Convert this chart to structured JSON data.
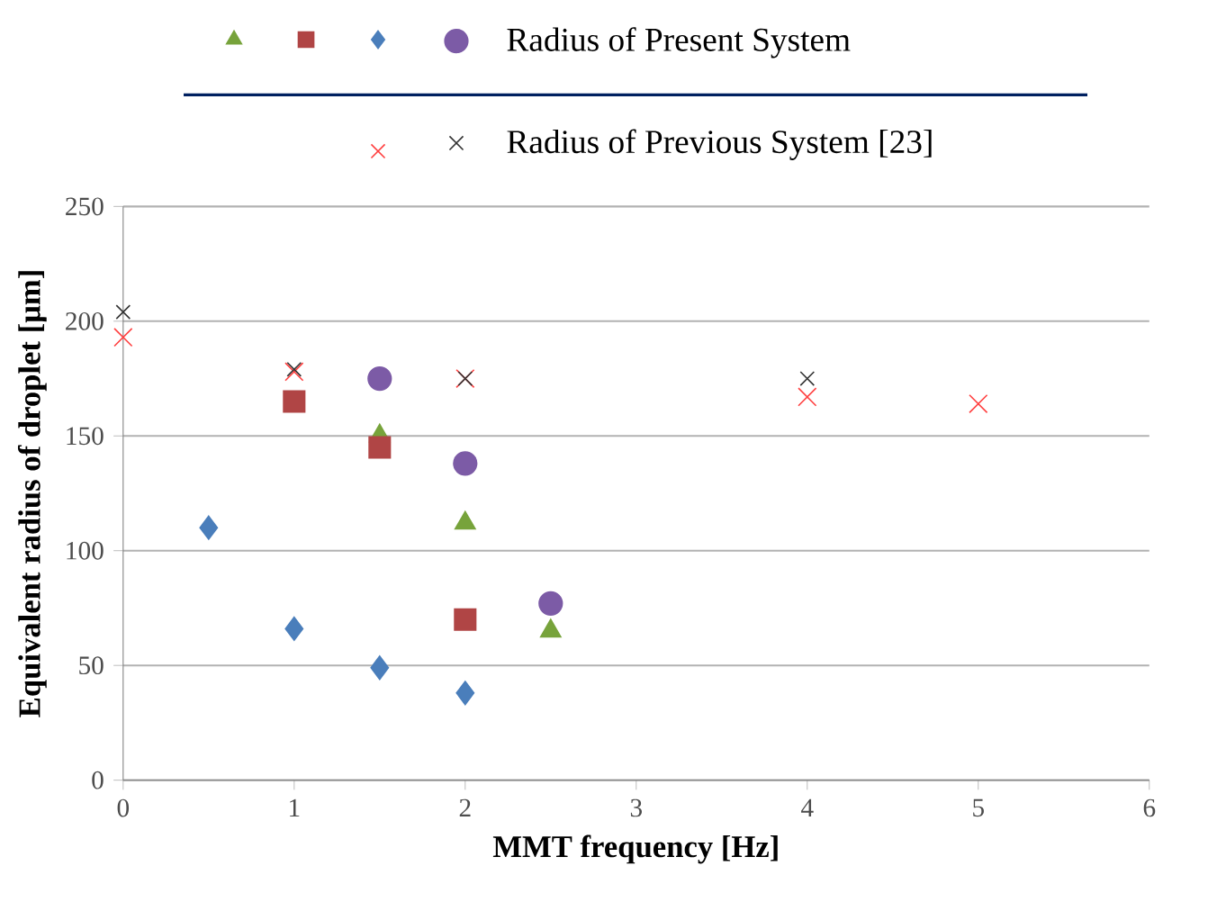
{
  "chart_data": {
    "type": "scatter",
    "xlabel": "MMT frequency [Hz]",
    "ylabel": "Equivalent radius of droplet [μm]",
    "xlim": [
      0,
      6
    ],
    "xticks": [
      0,
      1,
      2,
      3,
      4,
      5,
      6
    ],
    "ylim": [
      0,
      250
    ],
    "yticks": [
      0,
      50,
      100,
      150,
      200,
      250
    ],
    "grid": "y",
    "legend": "top",
    "series": [
      {
        "color": "#77a33b",
        "marker": "triangle",
        "x": [
          1.5,
          2,
          2.5
        ],
        "values": [
          150,
          112,
          65
        ]
      },
      {
        "color": "#b04545",
        "marker": "square",
        "x": [
          1,
          1.5,
          2
        ],
        "values": [
          165,
          145,
          70
        ]
      },
      {
        "color": "#4a7ebb",
        "marker": "diamond",
        "x": [
          0.5,
          1,
          1.5,
          2
        ],
        "values": [
          110,
          66,
          49,
          38
        ]
      },
      {
        "name": "Radius of Present System",
        "color": "#7c5ba6",
        "marker": "circle",
        "x": [
          1.5,
          2,
          2.5
        ],
        "values": [
          175,
          138,
          77
        ]
      },
      {
        "color": "#ff4040",
        "marker": "cross",
        "x": [
          0,
          1,
          2,
          4,
          5
        ],
        "values": [
          193,
          178,
          175,
          167,
          164
        ]
      },
      {
        "name": "Radius of Previous System [23]",
        "color": "#333333",
        "marker": "cross",
        "x": [
          0,
          1,
          2,
          4
        ],
        "values": [
          204,
          179,
          175,
          175
        ]
      }
    ]
  }
}
